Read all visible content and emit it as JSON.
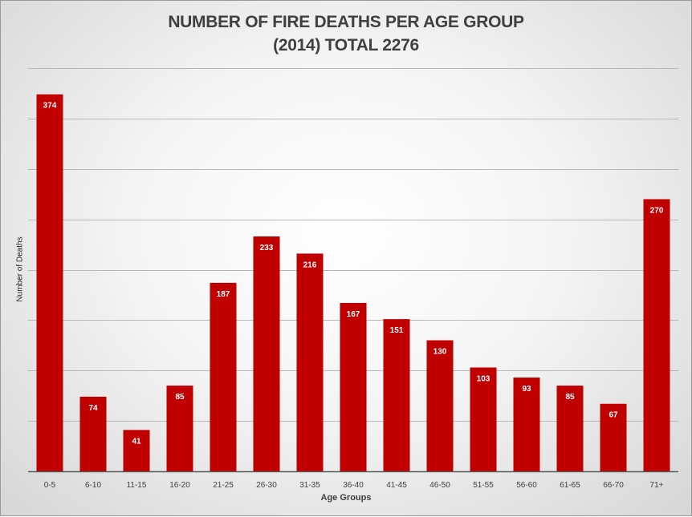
{
  "chart_data": {
    "type": "bar",
    "title_lines": [
      "NUMBER OF FIRE DEATHS PER AGE GROUP",
      "(2014) TOTAL 2276"
    ],
    "xlabel": "Age Groups",
    "ylabel": "Number of Deaths",
    "categories": [
      "0-5",
      "6-10",
      "11-15",
      "16-20",
      "21-25",
      "26-30",
      "31-35",
      "36-40",
      "41-45",
      "46-50",
      "51-55",
      "56-60",
      "61-65",
      "66-70",
      "71+"
    ],
    "values": [
      374,
      74,
      41,
      85,
      187,
      233,
      216,
      167,
      151,
      130,
      103,
      93,
      85,
      67,
      270
    ],
    "ylim": [
      0,
      400
    ],
    "grid": true,
    "legend": "none",
    "data_labels": true,
    "bar_color": "#c00000"
  }
}
